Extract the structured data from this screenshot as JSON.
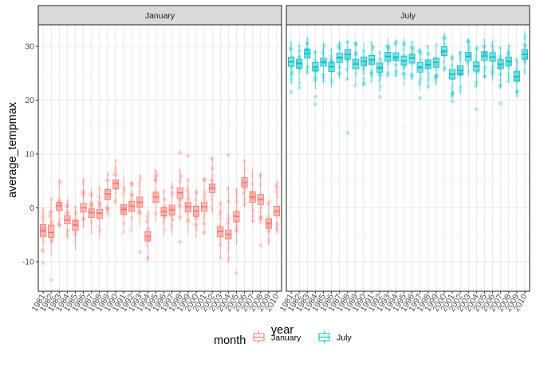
{
  "chart_data": {
    "type": "boxplot",
    "facet_var": "month",
    "facets": [
      "January",
      "July"
    ],
    "xlabel": "year",
    "ylabel": "average_tempmax",
    "ylim": [
      -15.5,
      34
    ],
    "yticks": [
      -10,
      0,
      10,
      20,
      30
    ],
    "legend": {
      "title": "month",
      "position": "bottom",
      "entries": [
        {
          "label": "January",
          "color": "#F8766D"
        },
        {
          "label": "July",
          "color": "#00BFC4"
        }
      ]
    },
    "grid": true,
    "theme": "bw",
    "x_categories": [
      "1981",
      "1982",
      "1983",
      "1984",
      "1985",
      "1986",
      "1987",
      "1988",
      "1989",
      "1990",
      "1991",
      "1992",
      "1993",
      "1994",
      "1995",
      "1996",
      "1997",
      "1998",
      "1999",
      "2000",
      "2001",
      "2002",
      "2003",
      "2004",
      "2005",
      "2006",
      "2007",
      "2008",
      "2009",
      "2010"
    ],
    "series": [
      {
        "name": "January",
        "color": "#F8766D",
        "boxes": [
          {
            "year": "1981",
            "q1": -5.3,
            "median": -4.3,
            "q3": -3.1,
            "whisker_low": -8.2,
            "whisker_high": -0.2,
            "outliers": [
              -10.2
            ]
          },
          {
            "year": "1982",
            "q1": -5.5,
            "median": -4.6,
            "q3": -3.2,
            "whisker_low": -8.9,
            "whisker_high": 1.9,
            "outliers": [
              -13.4
            ]
          },
          {
            "year": "1983",
            "q1": -0.5,
            "median": 0.4,
            "q3": 1.0,
            "whisker_low": -3.7,
            "whisker_high": 5.2,
            "outliers": []
          },
          {
            "year": "1984",
            "q1": -3.0,
            "median": -2.3,
            "q3": -1.5,
            "whisker_low": -5.7,
            "whisker_high": 1.7,
            "outliers": []
          },
          {
            "year": "1985",
            "q1": -4.2,
            "median": -3.2,
            "q3": -2.3,
            "whisker_low": -7.8,
            "whisker_high": 0.3,
            "outliers": []
          },
          {
            "year": "1986",
            "q1": -0.8,
            "median": 0.0,
            "q3": 0.8,
            "whisker_low": -3.8,
            "whisker_high": 5.3,
            "outliers": []
          },
          {
            "year": "1987",
            "q1": -1.8,
            "median": -0.9,
            "q3": -0.2,
            "whisker_low": -4.6,
            "whisker_high": 3.5,
            "outliers": []
          },
          {
            "year": "1988",
            "q1": -2.0,
            "median": -1.0,
            "q3": -0.3,
            "whisker_low": -5.7,
            "whisker_high": 4.2,
            "outliers": []
          },
          {
            "year": "1989",
            "q1": 1.5,
            "median": 2.6,
            "q3": 3.4,
            "whisker_low": -1.4,
            "whisker_high": 6.7,
            "outliers": []
          },
          {
            "year": "1990",
            "q1": 3.5,
            "median": 4.5,
            "q3": 5.2,
            "whisker_low": 0.9,
            "whisker_high": 8.9,
            "outliers": []
          },
          {
            "year": "1991",
            "q1": -1.2,
            "median": -0.3,
            "q3": 0.6,
            "whisker_low": -4.6,
            "whisker_high": 6.0,
            "outliers": []
          },
          {
            "year": "1992",
            "q1": -0.7,
            "median": 0.3,
            "q3": 1.2,
            "whisker_low": -4.3,
            "whisker_high": 4.8,
            "outliers": []
          },
          {
            "year": "1993",
            "q1": 0.1,
            "median": 1.0,
            "q3": 2.0,
            "whisker_low": -3.2,
            "whisker_high": 6.2,
            "outliers": [
              -8.2
            ]
          },
          {
            "year": "1994",
            "q1": -6.2,
            "median": -5.3,
            "q3": -4.4,
            "whisker_low": -10.2,
            "whisker_high": -0.5,
            "outliers": []
          },
          {
            "year": "1995",
            "q1": 1.0,
            "median": 2.0,
            "q3": 2.9,
            "whisker_low": -2.6,
            "whisker_high": 7.1,
            "outliers": []
          },
          {
            "year": "1996",
            "q1": -1.5,
            "median": -0.7,
            "q3": 0.1,
            "whisker_low": -5.2,
            "whisker_high": 3.5,
            "outliers": []
          },
          {
            "year": "1997",
            "q1": -1.3,
            "median": -0.4,
            "q3": 0.5,
            "whisker_low": -5.0,
            "whisker_high": 4.7,
            "outliers": []
          },
          {
            "year": "1998",
            "q1": 1.7,
            "median": 2.8,
            "q3": 3.7,
            "whisker_low": -2.5,
            "whisker_high": 7.3,
            "outliers": [
              10.2,
              -6.3
            ]
          },
          {
            "year": "1999",
            "q1": -0.8,
            "median": 0.2,
            "q3": 1.0,
            "whisker_low": -4.7,
            "whisker_high": 5.5,
            "outliers": [
              9.7
            ]
          },
          {
            "year": "2000",
            "q1": -1.6,
            "median": -0.6,
            "q3": 0.3,
            "whisker_low": -5.6,
            "whisker_high": 3.8,
            "outliers": []
          },
          {
            "year": "2001",
            "q1": -0.7,
            "median": 0.2,
            "q3": 1.0,
            "whisker_low": -4.8,
            "whisker_high": 5.6,
            "outliers": []
          },
          {
            "year": "2002",
            "q1": 2.8,
            "median": 3.6,
            "q3": 4.4,
            "whisker_low": -1.3,
            "whisker_high": 9.4,
            "outliers": []
          },
          {
            "year": "2003",
            "q1": -5.4,
            "median": -4.4,
            "q3": -3.5,
            "whisker_low": -9.4,
            "whisker_high": 1.0,
            "outliers": []
          },
          {
            "year": "2004",
            "q1": -5.8,
            "median": -4.9,
            "q3": -4.1,
            "whisker_low": -10.0,
            "whisker_high": 4.0,
            "outliers": [
              9.8
            ]
          },
          {
            "year": "2005",
            "q1": -2.6,
            "median": -1.6,
            "q3": -0.7,
            "whisker_low": -6.9,
            "whisker_high": 3.7,
            "outliers": [
              -12.1
            ]
          },
          {
            "year": "2006",
            "q1": 3.8,
            "median": 4.7,
            "q3": 5.6,
            "whisker_low": 0.1,
            "whisker_high": 8.9,
            "outliers": []
          },
          {
            "year": "2007",
            "q1": 1.0,
            "median": 2.0,
            "q3": 3.0,
            "whisker_low": -2.7,
            "whisker_high": 7.4,
            "outliers": []
          },
          {
            "year": "2008",
            "q1": 0.6,
            "median": 1.6,
            "q3": 2.5,
            "whisker_low": -3.0,
            "whisker_high": 6.5,
            "outliers": [
              -7.0
            ]
          },
          {
            "year": "2009",
            "q1": -3.8,
            "median": -2.9,
            "q3": -2.0,
            "whisker_low": -7.0,
            "whisker_high": 1.3,
            "outliers": []
          },
          {
            "year": "2010",
            "q1": -1.5,
            "median": -0.6,
            "q3": 0.3,
            "whisker_low": -4.8,
            "whisker_high": 5.0,
            "outliers": []
          }
        ]
      },
      {
        "name": "July",
        "color": "#00BFC4",
        "boxes": [
          {
            "year": "1981",
            "q1": 26.3,
            "median": 27.1,
            "q3": 28.0,
            "whisker_low": 23.1,
            "whisker_high": 31.0,
            "outliers": [
              21.5
            ]
          },
          {
            "year": "1982",
            "q1": 25.9,
            "median": 26.8,
            "q3": 27.6,
            "whisker_low": 23.0,
            "whisker_high": 30.3,
            "outliers": [
              22.3
            ]
          },
          {
            "year": "1983",
            "q1": 27.8,
            "median": 28.6,
            "q3": 29.5,
            "whisker_low": 24.8,
            "whisker_high": 31.8,
            "outliers": []
          },
          {
            "year": "1984",
            "q1": 25.4,
            "median": 26.2,
            "q3": 27.0,
            "whisker_low": 22.0,
            "whisker_high": 29.3,
            "outliers": [
              20.6,
              19.2
            ]
          },
          {
            "year": "1985",
            "q1": 26.3,
            "median": 27.0,
            "q3": 27.8,
            "whisker_low": 23.2,
            "whisker_high": 30.5,
            "outliers": []
          },
          {
            "year": "1986",
            "q1": 25.3,
            "median": 26.2,
            "q3": 27.0,
            "whisker_low": 22.3,
            "whisker_high": 29.8,
            "outliers": []
          },
          {
            "year": "1987",
            "q1": 27.0,
            "median": 27.9,
            "q3": 28.7,
            "whisker_low": 24.0,
            "whisker_high": 31.0,
            "outliers": []
          },
          {
            "year": "1988",
            "q1": 27.6,
            "median": 28.5,
            "q3": 29.4,
            "whisker_low": 23.8,
            "whisker_high": 31.0,
            "outliers": [
              13.9
            ]
          },
          {
            "year": "1989",
            "q1": 25.8,
            "median": 26.7,
            "q3": 27.6,
            "whisker_low": 22.6,
            "whisker_high": 30.8,
            "outliers": []
          },
          {
            "year": "1990",
            "q1": 26.4,
            "median": 27.2,
            "q3": 28.0,
            "whisker_low": 22.8,
            "whisker_high": 30.7,
            "outliers": []
          },
          {
            "year": "1991",
            "q1": 26.6,
            "median": 27.5,
            "q3": 28.3,
            "whisker_low": 23.2,
            "whisker_high": 30.8,
            "outliers": []
          },
          {
            "year": "1992",
            "q1": 25.2,
            "median": 26.0,
            "q3": 26.9,
            "whisker_low": 21.5,
            "whisker_high": 29.2,
            "outliers": [
              20.6
            ]
          },
          {
            "year": "1993",
            "q1": 27.2,
            "median": 28.1,
            "q3": 28.9,
            "whisker_low": 24.3,
            "whisker_high": 31.3,
            "outliers": []
          },
          {
            "year": "1994",
            "q1": 27.3,
            "median": 28.0,
            "q3": 28.8,
            "whisker_low": 24.5,
            "whisker_high": 31.2,
            "outliers": []
          },
          {
            "year": "1995",
            "q1": 26.5,
            "median": 27.3,
            "q3": 28.2,
            "whisker_low": 22.6,
            "whisker_high": 31.4,
            "outliers": []
          },
          {
            "year": "1996",
            "q1": 26.9,
            "median": 27.8,
            "q3": 28.5,
            "whisker_low": 23.8,
            "whisker_high": 30.8,
            "outliers": []
          },
          {
            "year": "1997",
            "q1": 25.2,
            "median": 26.1,
            "q3": 27.0,
            "whisker_low": 21.7,
            "whisker_high": 29.5,
            "outliers": [
              20.4
            ]
          },
          {
            "year": "1998",
            "q1": 25.8,
            "median": 26.6,
            "q3": 27.5,
            "whisker_low": 22.3,
            "whisker_high": 30.2,
            "outliers": []
          },
          {
            "year": "1999",
            "q1": 26.1,
            "median": 27.0,
            "q3": 27.8,
            "whisker_low": 22.8,
            "whisker_high": 30.3,
            "outliers": []
          },
          {
            "year": "2000",
            "q1": 28.3,
            "median": 29.1,
            "q3": 29.9,
            "whisker_low": 25.4,
            "whisker_high": 32.5,
            "outliers": []
          },
          {
            "year": "2001",
            "q1": 23.9,
            "median": 24.8,
            "q3": 25.7,
            "whisker_low": 20.3,
            "whisker_high": 28.3,
            "outliers": [
              19.8
            ]
          },
          {
            "year": "2002",
            "q1": 24.7,
            "median": 25.5,
            "q3": 26.4,
            "whisker_low": 21.3,
            "whisker_high": 29.0,
            "outliers": []
          },
          {
            "year": "2003",
            "q1": 27.3,
            "median": 28.1,
            "q3": 28.9,
            "whisker_low": 24.4,
            "whisker_high": 31.5,
            "outliers": []
          },
          {
            "year": "2004",
            "q1": 25.4,
            "median": 26.3,
            "q3": 27.1,
            "whisker_low": 22.5,
            "whisker_high": 29.8,
            "outliers": [
              18.3
            ]
          },
          {
            "year": "2005",
            "q1": 27.4,
            "median": 28.2,
            "q3": 29.0,
            "whisker_low": 24.2,
            "whisker_high": 31.4,
            "outliers": []
          },
          {
            "year": "2006",
            "q1": 27.2,
            "median": 28.0,
            "q3": 28.8,
            "whisker_low": 23.6,
            "whisker_high": 31.0,
            "outliers": []
          },
          {
            "year": "2007",
            "q1": 25.8,
            "median": 26.7,
            "q3": 27.5,
            "whisker_low": 22.1,
            "whisker_high": 29.9,
            "outliers": [
              19.4
            ]
          },
          {
            "year": "2008",
            "q1": 26.4,
            "median": 27.2,
            "q3": 28.0,
            "whisker_low": 23.2,
            "whisker_high": 30.5,
            "outliers": []
          },
          {
            "year": "2009",
            "q1": 23.5,
            "median": 24.4,
            "q3": 25.3,
            "whisker_low": 20.6,
            "whisker_high": 27.8,
            "outliers": []
          },
          {
            "year": "2010",
            "q1": 27.6,
            "median": 28.5,
            "q3": 29.4,
            "whisker_low": 24.7,
            "whisker_high": 32.8,
            "outliers": []
          }
        ]
      }
    ]
  }
}
